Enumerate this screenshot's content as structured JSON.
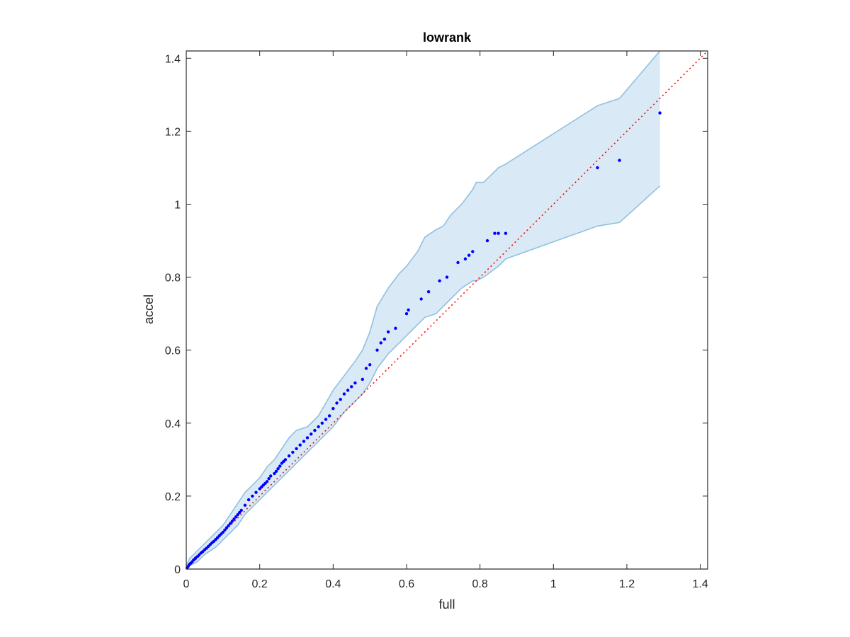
{
  "chart_data": {
    "type": "scatter",
    "title": "lowrank",
    "xlabel": "full",
    "ylabel": "accel",
    "xlim": [
      0,
      1.42
    ],
    "ylim": [
      0,
      1.42
    ],
    "x_ticks": [
      0,
      0.2,
      0.4,
      0.6,
      0.8,
      1,
      1.2,
      1.4
    ],
    "y_ticks": [
      0,
      0.2,
      0.4,
      0.6,
      0.8,
      1,
      1.2,
      1.4
    ],
    "x_tick_labels": [
      "0",
      "0.2",
      "0.4",
      "0.6",
      "0.8",
      "1",
      "1.2",
      "1.4"
    ],
    "y_tick_labels": [
      "0",
      "0.2",
      "0.4",
      "0.6",
      "0.8",
      "1",
      "1.2",
      "1.4"
    ],
    "grid": false,
    "colors": {
      "points": "#0000ff",
      "reference_line": "#ff0000",
      "band_fill": "#d9e9f5",
      "band_edge": "#8fc1e0",
      "axes": "#262626"
    },
    "reference_line": {
      "style": "dotted",
      "x": [
        0,
        1.42
      ],
      "y": [
        0,
        1.42
      ]
    },
    "band": {
      "x": [
        0,
        0.01,
        0.03,
        0.05,
        0.08,
        0.1,
        0.12,
        0.14,
        0.16,
        0.18,
        0.2,
        0.22,
        0.24,
        0.26,
        0.28,
        0.3,
        0.33,
        0.36,
        0.4,
        0.43,
        0.46,
        0.48,
        0.5,
        0.52,
        0.55,
        0.58,
        0.6,
        0.63,
        0.65,
        0.68,
        0.7,
        0.72,
        0.75,
        0.78,
        0.79,
        0.81,
        0.85,
        0.87,
        1.12,
        1.18,
        1.29
      ],
      "upper": [
        0.01,
        0.03,
        0.05,
        0.07,
        0.1,
        0.12,
        0.15,
        0.18,
        0.21,
        0.23,
        0.25,
        0.28,
        0.3,
        0.33,
        0.36,
        0.38,
        0.39,
        0.42,
        0.49,
        0.53,
        0.57,
        0.6,
        0.65,
        0.72,
        0.77,
        0.81,
        0.83,
        0.87,
        0.91,
        0.93,
        0.94,
        0.97,
        1.0,
        1.04,
        1.06,
        1.06,
        1.1,
        1.11,
        1.27,
        1.29,
        1.42
      ],
      "lower": [
        0,
        0.01,
        0.02,
        0.04,
        0.06,
        0.08,
        0.1,
        0.12,
        0.15,
        0.17,
        0.19,
        0.21,
        0.23,
        0.25,
        0.27,
        0.29,
        0.32,
        0.35,
        0.39,
        0.43,
        0.46,
        0.48,
        0.51,
        0.55,
        0.59,
        0.62,
        0.64,
        0.67,
        0.69,
        0.7,
        0.72,
        0.74,
        0.77,
        0.79,
        0.79,
        0.8,
        0.83,
        0.85,
        0.94,
        0.95,
        1.05
      ]
    },
    "points": {
      "x": [
        0.002,
        0.005,
        0.008,
        0.012,
        0.016,
        0.02,
        0.025,
        0.03,
        0.035,
        0.04,
        0.045,
        0.05,
        0.055,
        0.06,
        0.065,
        0.07,
        0.075,
        0.08,
        0.085,
        0.09,
        0.095,
        0.1,
        0.105,
        0.11,
        0.115,
        0.12,
        0.125,
        0.13,
        0.135,
        0.14,
        0.145,
        0.15,
        0.16,
        0.17,
        0.18,
        0.19,
        0.2,
        0.205,
        0.21,
        0.215,
        0.22,
        0.225,
        0.23,
        0.24,
        0.245,
        0.25,
        0.255,
        0.26,
        0.265,
        0.27,
        0.28,
        0.29,
        0.3,
        0.31,
        0.32,
        0.33,
        0.34,
        0.35,
        0.36,
        0.37,
        0.38,
        0.39,
        0.4,
        0.41,
        0.42,
        0.43,
        0.44,
        0.45,
        0.46,
        0.48,
        0.49,
        0.5,
        0.52,
        0.53,
        0.54,
        0.55,
        0.57,
        0.6,
        0.605,
        0.64,
        0.66,
        0.69,
        0.71,
        0.74,
        0.76,
        0.77,
        0.78,
        0.82,
        0.84,
        0.85,
        0.87,
        1.12,
        1.18,
        1.29
      ],
      "y": [
        0.003,
        0.007,
        0.012,
        0.016,
        0.02,
        0.025,
        0.03,
        0.034,
        0.039,
        0.044,
        0.048,
        0.053,
        0.057,
        0.062,
        0.067,
        0.072,
        0.076,
        0.081,
        0.086,
        0.091,
        0.096,
        0.101,
        0.107,
        0.113,
        0.119,
        0.125,
        0.131,
        0.137,
        0.143,
        0.149,
        0.155,
        0.161,
        0.175,
        0.19,
        0.2,
        0.21,
        0.22,
        0.225,
        0.23,
        0.235,
        0.24,
        0.248,
        0.255,
        0.262,
        0.268,
        0.275,
        0.282,
        0.29,
        0.295,
        0.3,
        0.31,
        0.32,
        0.33,
        0.34,
        0.35,
        0.36,
        0.37,
        0.38,
        0.39,
        0.4,
        0.41,
        0.42,
        0.44,
        0.455,
        0.465,
        0.48,
        0.49,
        0.5,
        0.51,
        0.52,
        0.55,
        0.56,
        0.6,
        0.62,
        0.63,
        0.65,
        0.66,
        0.7,
        0.71,
        0.74,
        0.76,
        0.79,
        0.8,
        0.84,
        0.85,
        0.86,
        0.87,
        0.9,
        0.92,
        0.92,
        0.92,
        1.1,
        1.12,
        1.25
      ]
    }
  }
}
